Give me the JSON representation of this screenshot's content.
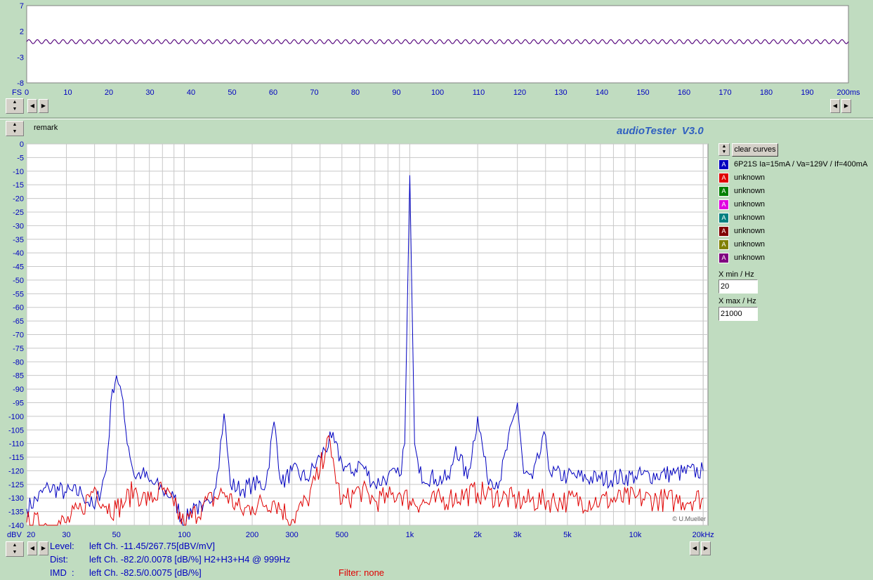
{
  "app": {
    "title": "audioTester  V3.0",
    "remark_label": "remark",
    "copyright": "© U.Mueller",
    "clear_curves": "clear curves",
    "xmin_label": "X min / Hz",
    "xmin_value": "20",
    "xmax_label": "X max / Hz",
    "xmax_value": "21000",
    "filter": "Filter: none"
  },
  "legend": [
    {
      "label": "6P21S Ia=15mA / Va=129V / If=400mA",
      "color": "#0000c0"
    },
    {
      "label": "unknown",
      "color": "#e00000"
    },
    {
      "label": "unknown",
      "color": "#008000"
    },
    {
      "label": "unknown",
      "color": "#e000e0"
    },
    {
      "label": "unknown",
      "color": "#008080"
    },
    {
      "label": "unknown",
      "color": "#800000"
    },
    {
      "label": "unknown",
      "color": "#808000"
    },
    {
      "label": "unknown",
      "color": "#800080"
    }
  ],
  "info": {
    "level_label": "Level:",
    "level_value": "left Ch. -11.45/267.75[dBV/mV]",
    "dist_label": "Dist:",
    "dist_value": "left Ch. -82.2/0.0078 [dB/%] H2+H3+H4 @ 999Hz",
    "imd_label": "IMD  :",
    "imd_value": "left Ch. -82.5/0.0075 [dB/%]"
  },
  "chart_data": [
    {
      "type": "line",
      "name": "time-domain",
      "xunit": "ms",
      "yunit": "FS",
      "x_ticks": [
        "0",
        "10",
        "20",
        "30",
        "40",
        "50",
        "60",
        "70",
        "80",
        "90",
        "100",
        "110",
        "120",
        "130",
        "140",
        "150",
        "160",
        "170",
        "180",
        "190",
        "200ms"
      ],
      "y_ticks": [
        "7",
        "2",
        "-3",
        "-8"
      ],
      "y_unit_label": "FS",
      "xlim": [
        0,
        200
      ],
      "ylim": [
        -8,
        7
      ],
      "waveform": {
        "offset": 0,
        "amplitude": 0.4,
        "frequency_khz": 1
      }
    },
    {
      "type": "line",
      "name": "spectrum",
      "xscale": "log",
      "xlim": [
        20,
        21000
      ],
      "ylim": [
        -140,
        0
      ],
      "y_unit_label": "dBV",
      "x_tick_labels": [
        "20",
        "30",
        "50",
        "100",
        "200",
        "300",
        "500",
        "1k",
        "2k",
        "3k",
        "5k",
        "10k",
        "20kHz"
      ],
      "x_tick_values": [
        20,
        30,
        50,
        100,
        200,
        300,
        500,
        1000,
        2000,
        3000,
        5000,
        10000,
        20000
      ],
      "y_ticks": [
        0,
        -5,
        -10,
        -15,
        -20,
        -25,
        -30,
        -35,
        -40,
        -45,
        -50,
        -55,
        -60,
        -65,
        -70,
        -75,
        -80,
        -85,
        -90,
        -95,
        -100,
        -105,
        -110,
        -115,
        -120,
        -125,
        -130,
        -135,
        -140
      ],
      "grid": true,
      "series": [
        {
          "name": "6P21S Ia=15mA / Va=129V / If=400mA",
          "color": "#0000c0",
          "points": [
            [
              20,
              -134
            ],
            [
              25,
              -126
            ],
            [
              30,
              -128
            ],
            [
              35,
              -128
            ],
            [
              40,
              -134
            ],
            [
              45,
              -120
            ],
            [
              48,
              -90
            ],
            [
              50,
              -85
            ],
            [
              52,
              -89
            ],
            [
              55,
              -105
            ],
            [
              60,
              -122
            ],
            [
              65,
              -121
            ],
            [
              70,
              -124
            ],
            [
              80,
              -127
            ],
            [
              90,
              -130
            ],
            [
              100,
              -140
            ],
            [
              110,
              -132
            ],
            [
              120,
              -135
            ],
            [
              130,
              -132
            ],
            [
              140,
              -121
            ],
            [
              150,
              -99
            ],
            [
              160,
              -125
            ],
            [
              180,
              -127
            ],
            [
              200,
              -125
            ],
            [
              230,
              -125
            ],
            [
              250,
              -102
            ],
            [
              270,
              -125
            ],
            [
              300,
              -120
            ],
            [
              350,
              -123
            ],
            [
              400,
              -115
            ],
            [
              450,
              -108
            ],
            [
              500,
              -117
            ],
            [
              550,
              -121
            ],
            [
              600,
              -117
            ],
            [
              700,
              -125
            ],
            [
              800,
              -122
            ],
            [
              900,
              -122
            ],
            [
              950,
              -110
            ],
            [
              1000,
              -11.5
            ],
            [
              1050,
              -110
            ],
            [
              1100,
              -121
            ],
            [
              1300,
              -123
            ],
            [
              1500,
              -123
            ],
            [
              1600,
              -111
            ],
            [
              1800,
              -123
            ],
            [
              2000,
              -100
            ],
            [
              2200,
              -122
            ],
            [
              2500,
              -124
            ],
            [
              3000,
              -95
            ],
            [
              3200,
              -121
            ],
            [
              3500,
              -123
            ],
            [
              4000,
              -107
            ],
            [
              4200,
              -121
            ],
            [
              5000,
              -122
            ],
            [
              7000,
              -123
            ],
            [
              10000,
              -122
            ],
            [
              15000,
              -121
            ],
            [
              20000,
              -120
            ]
          ]
        },
        {
          "name": "unknown",
          "color": "#e00000",
          "points": [
            [
              20,
              -139
            ],
            [
              25,
              -140
            ],
            [
              30,
              -139
            ],
            [
              35,
              -134
            ],
            [
              40,
              -126
            ],
            [
              45,
              -133
            ],
            [
              50,
              -134
            ],
            [
              55,
              -131
            ],
            [
              60,
              -127
            ],
            [
              65,
              -130
            ],
            [
              70,
              -131
            ],
            [
              80,
              -127
            ],
            [
              90,
              -133
            ],
            [
              100,
              -140
            ],
            [
              120,
              -133
            ],
            [
              150,
              -128
            ],
            [
              180,
              -135
            ],
            [
              200,
              -133
            ],
            [
              250,
              -131
            ],
            [
              300,
              -138
            ],
            [
              350,
              -131
            ],
            [
              400,
              -120
            ],
            [
              430,
              -108
            ],
            [
              450,
              -115
            ],
            [
              500,
              -132
            ],
            [
              600,
              -127
            ],
            [
              700,
              -131
            ],
            [
              800,
              -130
            ],
            [
              900,
              -128
            ],
            [
              1000,
              -131
            ],
            [
              1200,
              -132
            ],
            [
              1500,
              -130
            ],
            [
              2000,
              -128
            ],
            [
              3000,
              -131
            ],
            [
              5000,
              -131
            ],
            [
              7000,
              -131
            ],
            [
              10000,
              -130
            ],
            [
              15000,
              -131
            ],
            [
              20000,
              -130
            ]
          ]
        }
      ]
    }
  ]
}
